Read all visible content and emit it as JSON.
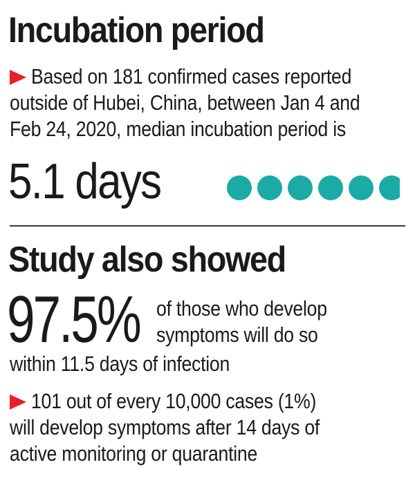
{
  "section1": {
    "heading": "Incubation period",
    "lines": [
      "Based on 181 confirmed cases reported",
      "outside of Hubei, China, between Jan 4 and",
      "Feb 24, 2020, median incubation period is"
    ],
    "big_value": "5.1 days",
    "dots_colour": "#1aaba6",
    "dots_count": 5.1
  },
  "section2": {
    "heading": "Study also showed",
    "percent": "97.5%",
    "percent_lines": [
      "of those who develop",
      "symptoms will do so"
    ],
    "percent_tail": "within 11.5 days of infection",
    "lines": [
      "101 out of every 10,000 cases (1%)",
      "will develop symptoms after 14 days of",
      "active monitoring or quarantine"
    ]
  },
  "colors": {
    "bullet": "#e8202a",
    "accent": "#1aaba6"
  }
}
